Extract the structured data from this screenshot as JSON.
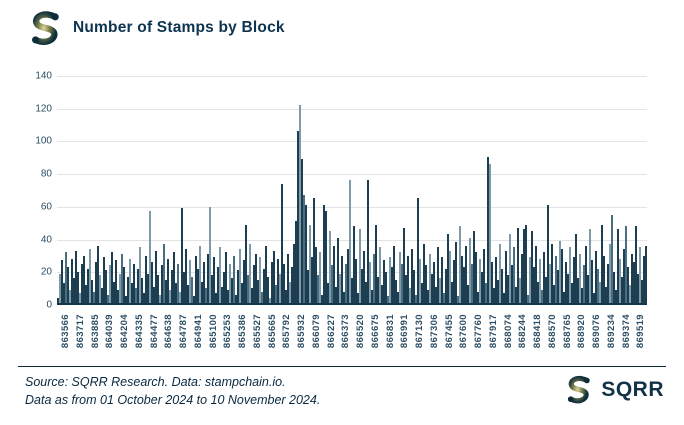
{
  "header": {
    "title": "Number of Stamps by Block"
  },
  "branding": {
    "logo_name": "sqrr-s-icon",
    "wordmark": "SQRR"
  },
  "footer": {
    "source_line": "Source: SQRR Research. Data: stampchain.io.",
    "date_line": "Data as from 01 October 2024 to 10 November 2024."
  },
  "colors": {
    "title_text": "#0c3350",
    "axis_text": "#2b4d63",
    "gridline": "#e3e3e3",
    "axis_line": "#14364a",
    "bar_dark": "#1c3e50",
    "bar_mid": "#4a6d80",
    "bar_light": "#7e99a7",
    "logo_navy": "#0e2d3c",
    "logo_olive": "#ded9a0"
  },
  "chart_data": {
    "type": "bar",
    "title": "Number of Stamps by Block",
    "xlabel": "",
    "ylabel": "",
    "ylim": [
      0,
      140
    ],
    "grid": "horizontal",
    "legend": "none",
    "y_ticks": [
      0,
      20,
      40,
      60,
      80,
      100,
      120,
      140
    ],
    "x_tick_labels": [
      "863566",
      "863717",
      "863885",
      "864039",
      "864204",
      "864335",
      "864477",
      "864638",
      "864787",
      "864941",
      "865100",
      "865253",
      "865386",
      "865527",
      "865665",
      "865792",
      "865932",
      "866079",
      "866227",
      "866373",
      "866520",
      "866675",
      "866831",
      "866991",
      "867130",
      "867306",
      "867455",
      "867600",
      "867760",
      "867917",
      "868074",
      "868244",
      "868418",
      "868570",
      "868765",
      "868920",
      "869076",
      "869234",
      "869374",
      "869519"
    ],
    "x_range_note": "one bar per block from 863566 to 869519",
    "max_value": 121,
    "values": [
      3,
      18,
      26,
      12,
      31,
      22,
      8,
      27,
      15,
      32,
      19,
      6,
      24,
      29,
      11,
      21,
      33,
      14,
      7,
      25,
      35,
      17,
      9,
      28,
      20,
      5,
      23,
      31,
      13,
      26,
      8,
      18,
      30,
      22,
      4,
      16,
      27,
      12,
      24,
      9,
      21,
      34,
      15,
      6,
      29,
      18,
      56,
      25,
      10,
      32,
      17,
      5,
      23,
      36,
      14,
      27,
      8,
      20,
      31,
      12,
      24,
      7,
      58,
      19,
      33,
      11,
      26,
      16,
      4,
      29,
      21,
      35,
      13,
      25,
      9,
      30,
      59,
      17,
      28,
      6,
      22,
      34,
      10,
      19,
      31,
      8,
      24,
      15,
      29,
      5,
      20,
      33,
      12,
      26,
      48,
      17,
      36,
      9,
      23,
      30,
      14,
      28,
      7,
      21,
      35,
      16,
      3,
      25,
      32,
      11,
      27,
      18,
      73,
      24,
      8,
      30,
      13,
      22,
      36,
      50,
      105,
      121,
      88,
      66,
      60,
      20,
      48,
      28,
      64,
      34,
      17,
      31,
      5,
      60,
      56,
      12,
      44,
      23,
      35,
      10,
      40,
      18,
      29,
      7,
      24,
      33,
      75,
      15,
      47,
      27,
      6,
      45,
      21,
      32,
      13,
      75,
      25,
      8,
      30,
      48,
      16,
      34,
      11,
      26,
      19,
      4,
      28,
      22,
      35,
      14,
      7,
      31,
      24,
      46,
      17,
      29,
      9,
      33,
      20,
      5,
      64,
      27,
      12,
      36,
      23,
      8,
      30,
      18,
      25,
      10,
      34,
      15,
      28,
      6,
      21,
      42,
      32,
      13,
      26,
      37,
      4,
      47,
      29,
      22,
      35,
      11,
      40,
      24,
      44,
      31,
      7,
      27,
      19,
      33,
      12,
      89,
      85,
      25,
      9,
      28,
      14,
      36,
      21,
      6,
      32,
      17,
      42,
      23,
      34,
      10,
      46,
      15,
      30,
      45,
      48,
      5,
      28,
      44,
      22,
      35,
      13,
      27,
      8,
      31,
      16,
      60,
      24,
      36,
      11,
      29,
      20,
      38,
      33,
      7,
      25,
      18,
      34,
      12,
      28,
      42,
      15,
      30,
      9,
      23,
      35,
      17,
      45,
      26,
      6,
      32,
      21,
      13,
      48,
      29,
      10,
      24,
      36,
      54,
      19,
      8,
      45,
      27,
      16,
      33,
      47,
      22,
      11,
      30,
      25,
      47,
      18,
      34,
      14,
      29,
      35
    ]
  }
}
